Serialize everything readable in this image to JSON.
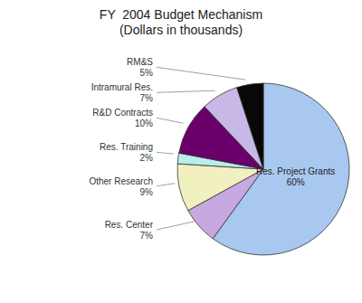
{
  "chart_data": {
    "type": "pie",
    "title": "FY  2004 Budget Mechanism\n(Dollars in thousands)",
    "categories": [
      "Res. Project Grants\n60%",
      "Res. Center\n7%",
      "Other Research\n9%",
      "Res. Training\n2%",
      "R&D Contracts\n10%",
      "Intramural Res.\n7%",
      "RM&S\n5%"
    ],
    "values": [
      60,
      7,
      9,
      2,
      10,
      7,
      5
    ],
    "colors": [
      "#a8c8f0",
      "#c8a8e0",
      "#f0f0c0",
      "#b8eeee",
      "#6a006a",
      "#c8b8e8",
      "#080808"
    ]
  }
}
